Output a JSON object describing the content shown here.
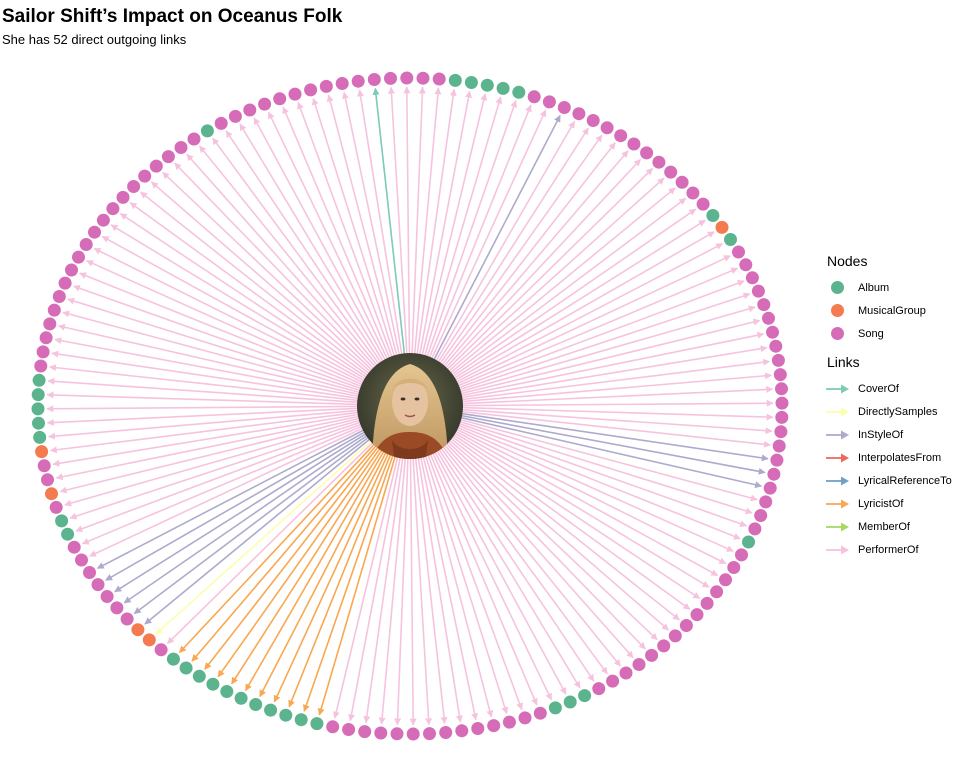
{
  "title": "Sailor Shift’s Impact on Oceanus Folk",
  "subtitle": "She has 52 direct outgoing links",
  "legend": {
    "nodes_title": "Nodes",
    "links_title": "Links",
    "nodes": [
      {
        "label": "Album",
        "color": "#5bb48e"
      },
      {
        "label": "MusicalGroup",
        "color": "#f47a50"
      },
      {
        "label": "Song",
        "color": "#d66cb8"
      }
    ],
    "links": [
      {
        "label": "CoverOf",
        "color": "#7dcbb5"
      },
      {
        "label": "DirectlySamples",
        "color": "#fdfdae"
      },
      {
        "label": "InStyleOf",
        "color": "#aeaacd"
      },
      {
        "label": "InterpolatesFrom",
        "color": "#ef6a5e"
      },
      {
        "label": "LyricalReferenceTo",
        "color": "#6fa1c6"
      },
      {
        "label": "LyricistOf",
        "color": "#f9a751"
      },
      {
        "label": "MemberOf",
        "color": "#a7d766"
      },
      {
        "label": "PerformerOf",
        "color": "#f6c3de"
      }
    ]
  },
  "center_node": {
    "name": "portrait",
    "icon": "woman-portrait-icon",
    "colors": [
      "#4a4a36",
      "#e0b98a",
      "#a8542a"
    ]
  },
  "ring": {
    "node_types": "SSSAAAAAAAAAAASMMSSSSSSSAASMSSMAAAAASSSSSSSSSSSSSSSSSSSSASSSSSSSSSSSSSSSAAAAASSSSSSSSSSSSSSAMASSSSSSSSSSSSSSSSSSSSSASSSSSSSSSSSSSSAAASSSSSSSSSSS",
    "link_types": "PPPLLLLLLLLLLLPDIIIIIIPPPPPPPPPPPPPPPPPPPPPPPPPPPPPPPPPPPPPPPPPPPPPCPPPPPPPPPPPIPPPPPPPPPPPPPPPPPPPPPPPPPPPPPIIIPPPPPPPPPPPPPPPPPPP"
  }
}
